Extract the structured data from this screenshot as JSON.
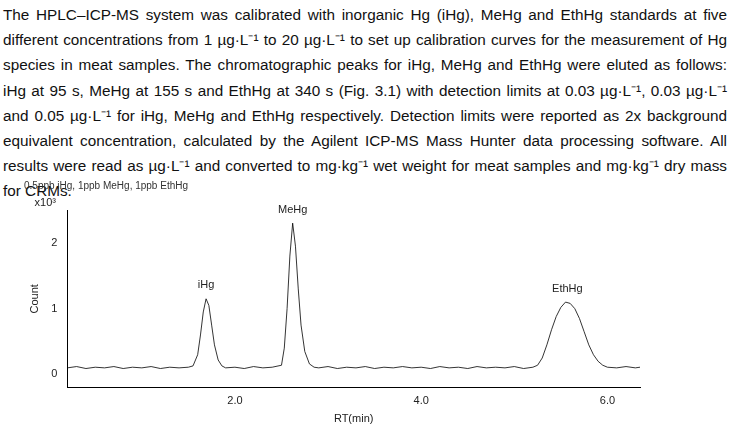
{
  "document": {
    "paragraph": "The HPLC–ICP-MS system was calibrated with inorganic Hg (iHg), MeHg and EthHg standards at five different concentrations from 1 µg·L⁻¹ to 20 µg·L⁻¹ to set up calibration curves for the measurement of Hg species in meat samples. The chromatographic peaks for iHg, MeHg and EthHg were eluted as follows: iHg at 95 s, MeHg at 155 s and EthHg at 340 s (Fig. 3.1) with detection limits at 0.03 µg·L⁻¹, 0.03 µg·L⁻¹ and 0.05 µg·L⁻¹ for iHg, MeHg and EthHg respectively. Detection limits were reported as 2x background equivalent concentration, calculated by the Agilent ICP-MS Mass Hunter data processing software. All results were read as µg·L⁻¹ and converted to mg·kg⁻¹ wet weight for meat samples and mg·kg⁻¹ dry mass for CRMs."
  },
  "chart_data": {
    "type": "line",
    "title": "0.5ppb iHg, 1ppb MeHg, 1ppb EthHg",
    "x_label": "RT(min)",
    "y_label": "Count",
    "y_multiplier": "x10³",
    "x": [
      0.2,
      0.3,
      0.4,
      0.5,
      0.6,
      0.7,
      0.8,
      0.9,
      1.0,
      1.1,
      1.2,
      1.3,
      1.4,
      1.5,
      1.55,
      1.6,
      1.63,
      1.66,
      1.69,
      1.72,
      1.75,
      1.78,
      1.82,
      1.86,
      1.9,
      2.0,
      2.1,
      2.2,
      2.3,
      2.4,
      2.5,
      2.53,
      2.56,
      2.59,
      2.62,
      2.65,
      2.68,
      2.71,
      2.75,
      2.8,
      2.85,
      2.9,
      3.0,
      3.1,
      3.2,
      3.3,
      3.4,
      3.5,
      3.6,
      3.7,
      3.8,
      3.9,
      4.0,
      4.1,
      4.2,
      4.3,
      4.4,
      4.5,
      4.6,
      4.7,
      4.8,
      4.9,
      5.0,
      5.1,
      5.2,
      5.25,
      5.3,
      5.35,
      5.4,
      5.45,
      5.5,
      5.55,
      5.6,
      5.65,
      5.7,
      5.75,
      5.8,
      5.85,
      5.9,
      5.95,
      6.0,
      6.1,
      6.2,
      6.3,
      6.35
    ],
    "values": [
      0.1,
      0.12,
      0.09,
      0.11,
      0.1,
      0.12,
      0.09,
      0.11,
      0.1,
      0.12,
      0.09,
      0.11,
      0.1,
      0.11,
      0.13,
      0.3,
      0.6,
      0.95,
      1.15,
      1.05,
      0.75,
      0.45,
      0.22,
      0.13,
      0.1,
      0.11,
      0.09,
      0.12,
      0.1,
      0.11,
      0.14,
      0.4,
      1.0,
      1.8,
      2.3,
      1.95,
      1.3,
      0.75,
      0.35,
      0.16,
      0.11,
      0.1,
      0.12,
      0.09,
      0.11,
      0.1,
      0.12,
      0.09,
      0.11,
      0.1,
      0.12,
      0.1,
      0.11,
      0.09,
      0.12,
      0.1,
      0.11,
      0.09,
      0.12,
      0.1,
      0.11,
      0.1,
      0.12,
      0.09,
      0.11,
      0.14,
      0.25,
      0.45,
      0.68,
      0.88,
      1.02,
      1.1,
      1.08,
      1.0,
      0.85,
      0.65,
      0.45,
      0.3,
      0.2,
      0.14,
      0.11,
      0.1,
      0.12,
      0.1,
      0.11
    ],
    "color": "#000000",
    "xlim": [
      0.2,
      6.35
    ],
    "xticks": [
      {
        "value": 2,
        "label": "2.0"
      },
      {
        "value": 4,
        "label": "4.0"
      },
      {
        "value": 6,
        "label": "6.0"
      }
    ],
    "ylim": [
      -0.2,
      2.5
    ],
    "yticks": [
      0,
      1,
      2
    ],
    "grid": false,
    "annotations": [
      {
        "text": "iHg",
        "x": 1.69,
        "y": 1.15
      },
      {
        "text": "MeHg",
        "x": 2.62,
        "y": 2.3
      },
      {
        "text": "EthHg",
        "x": 5.57,
        "y": 1.1
      }
    ]
  }
}
